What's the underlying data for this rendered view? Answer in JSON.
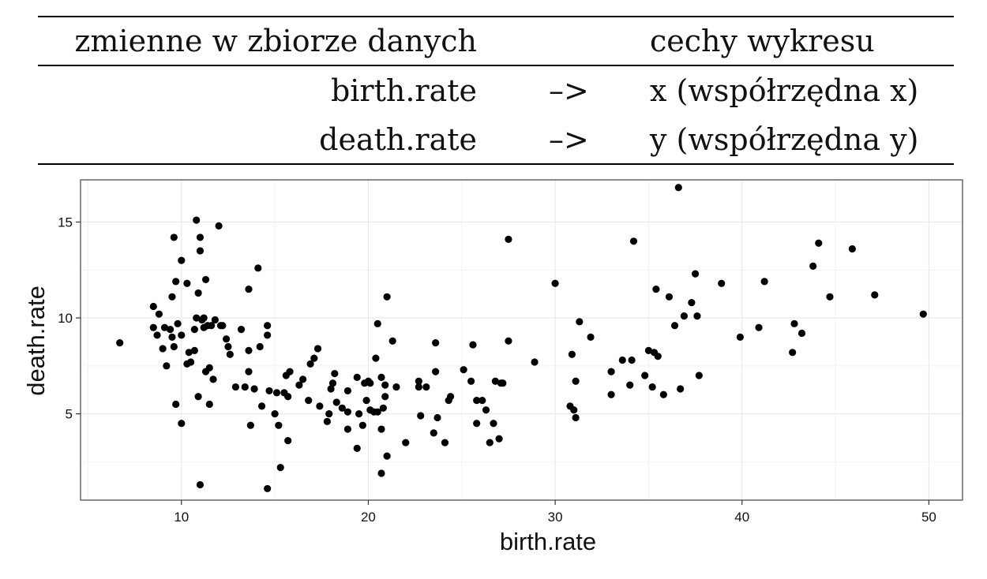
{
  "mapping_table": {
    "header": {
      "variables": "zmienne w zbiorze danych",
      "features": "cechy wykresu"
    },
    "rows": [
      {
        "variable": "birth.rate",
        "arrow": "–>",
        "feature": "x (współrzędna x)"
      },
      {
        "variable": "death.rate",
        "arrow": "–>",
        "feature": "y (współrzędna y)"
      }
    ]
  },
  "chart_data": {
    "type": "scatter",
    "xlabel": "birth.rate",
    "ylabel": "death.rate",
    "xlim": [
      4.6,
      51.8
    ],
    "ylim": [
      0.5,
      17.2
    ],
    "xticks": [
      10,
      20,
      30,
      40,
      50
    ],
    "yticks": [
      5,
      10,
      15
    ],
    "grid": true,
    "point_color": "#000000",
    "points": [
      [
        6.7,
        8.7
      ],
      [
        8.5,
        10.6
      ],
      [
        8.7,
        9.1
      ],
      [
        8.8,
        10.2
      ],
      [
        8.5,
        9.5
      ],
      [
        9.0,
        8.4
      ],
      [
        9.1,
        9.5
      ],
      [
        9.2,
        7.5
      ],
      [
        9.4,
        9.4
      ],
      [
        9.5,
        9.0
      ],
      [
        9.6,
        8.5
      ],
      [
        9.5,
        11.1
      ],
      [
        9.6,
        14.2
      ],
      [
        9.7,
        5.5
      ],
      [
        9.8,
        9.7
      ],
      [
        9.7,
        11.9
      ],
      [
        10.0,
        13.0
      ],
      [
        10.0,
        9.1
      ],
      [
        10.0,
        4.5
      ],
      [
        10.3,
        7.6
      ],
      [
        10.3,
        11.8
      ],
      [
        10.4,
        8.2
      ],
      [
        10.5,
        7.7
      ],
      [
        10.7,
        9.4
      ],
      [
        10.7,
        8.3
      ],
      [
        10.8,
        10.0
      ],
      [
        10.8,
        15.1
      ],
      [
        10.9,
        11.3
      ],
      [
        10.9,
        5.9
      ],
      [
        11.0,
        13.5
      ],
      [
        11.0,
        14.2
      ],
      [
        11.1,
        9.9
      ],
      [
        11.0,
        1.3
      ],
      [
        11.2,
        10.0
      ],
      [
        11.2,
        9.5
      ],
      [
        11.3,
        7.2
      ],
      [
        11.3,
        12.0
      ],
      [
        11.4,
        9.6
      ],
      [
        11.5,
        7.4
      ],
      [
        11.5,
        5.5
      ],
      [
        11.6,
        9.6
      ],
      [
        11.7,
        6.8
      ],
      [
        11.8,
        9.9
      ],
      [
        12.0,
        14.8
      ],
      [
        12.1,
        9.6
      ],
      [
        12.2,
        9.6
      ],
      [
        12.4,
        8.9
      ],
      [
        12.5,
        8.5
      ],
      [
        12.6,
        8.1
      ],
      [
        12.9,
        6.4
      ],
      [
        13.2,
        9.4
      ],
      [
        13.4,
        6.4
      ],
      [
        13.6,
        8.3
      ],
      [
        13.6,
        7.2
      ],
      [
        13.6,
        11.5
      ],
      [
        13.7,
        4.4
      ],
      [
        13.9,
        6.3
      ],
      [
        14.1,
        12.6
      ],
      [
        14.2,
        8.5
      ],
      [
        14.3,
        5.4
      ],
      [
        14.6,
        1.1
      ],
      [
        14.6,
        9.6
      ],
      [
        14.6,
        9.1
      ],
      [
        14.7,
        6.2
      ],
      [
        15.0,
        5.0
      ],
      [
        15.1,
        6.1
      ],
      [
        15.2,
        4.4
      ],
      [
        15.3,
        2.2
      ],
      [
        15.5,
        6.1
      ],
      [
        15.6,
        7.0
      ],
      [
        15.7,
        5.9
      ],
      [
        15.7,
        3.6
      ],
      [
        15.8,
        7.2
      ],
      [
        16.3,
        6.5
      ],
      [
        16.5,
        6.8
      ],
      [
        16.8,
        5.7
      ],
      [
        16.9,
        7.6
      ],
      [
        17.1,
        7.9
      ],
      [
        17.3,
        8.4
      ],
      [
        17.4,
        5.4
      ],
      [
        17.8,
        4.6
      ],
      [
        17.9,
        5.0
      ],
      [
        18.0,
        6.3
      ],
      [
        18.1,
        6.6
      ],
      [
        18.2,
        7.1
      ],
      [
        18.3,
        5.6
      ],
      [
        18.6,
        5.3
      ],
      [
        18.9,
        4.2
      ],
      [
        18.9,
        6.2
      ],
      [
        18.9,
        5.1
      ],
      [
        19.4,
        6.9
      ],
      [
        19.4,
        3.2
      ],
      [
        19.5,
        5.0
      ],
      [
        19.7,
        4.4
      ],
      [
        19.8,
        6.6
      ],
      [
        19.9,
        5.7
      ],
      [
        20.0,
        6.7
      ],
      [
        20.1,
        6.6
      ],
      [
        20.1,
        5.2
      ],
      [
        20.3,
        5.1
      ],
      [
        20.4,
        7.9
      ],
      [
        20.5,
        5.1
      ],
      [
        20.5,
        9.7
      ],
      [
        20.7,
        6.9
      ],
      [
        20.7,
        1.9
      ],
      [
        20.7,
        4.2
      ],
      [
        20.8,
        5.3
      ],
      [
        20.9,
        5.9
      ],
      [
        20.9,
        6.5
      ],
      [
        21.0,
        2.8
      ],
      [
        21.0,
        11.1
      ],
      [
        21.3,
        8.8
      ],
      [
        21.5,
        6.4
      ],
      [
        22.0,
        3.5
      ],
      [
        22.7,
        6.7
      ],
      [
        22.7,
        6.4
      ],
      [
        22.8,
        4.9
      ],
      [
        23.1,
        6.4
      ],
      [
        23.5,
        4.0
      ],
      [
        23.6,
        7.2
      ],
      [
        23.6,
        8.7
      ],
      [
        23.7,
        4.8
      ],
      [
        24.1,
        3.5
      ],
      [
        24.3,
        5.7
      ],
      [
        24.4,
        5.9
      ],
      [
        25.1,
        7.3
      ],
      [
        25.5,
        6.7
      ],
      [
        25.6,
        8.6
      ],
      [
        25.8,
        5.7
      ],
      [
        25.8,
        4.5
      ],
      [
        26.1,
        5.7
      ],
      [
        26.3,
        5.2
      ],
      [
        26.5,
        3.5
      ],
      [
        26.7,
        4.5
      ],
      [
        26.8,
        6.7
      ],
      [
        27.0,
        3.7
      ],
      [
        27.1,
        6.6
      ],
      [
        27.2,
        6.6
      ],
      [
        27.5,
        14.1
      ],
      [
        27.5,
        8.8
      ],
      [
        28.9,
        7.7
      ],
      [
        30.0,
        11.8
      ],
      [
        30.8,
        5.4
      ],
      [
        30.9,
        8.1
      ],
      [
        31.0,
        5.2
      ],
      [
        31.1,
        4.8
      ],
      [
        31.1,
        6.7
      ],
      [
        31.3,
        9.8
      ],
      [
        31.9,
        9.0
      ],
      [
        33.0,
        7.2
      ],
      [
        33.0,
        6.0
      ],
      [
        33.6,
        7.8
      ],
      [
        34.0,
        6.5
      ],
      [
        34.1,
        7.8
      ],
      [
        34.2,
        14.0
      ],
      [
        34.8,
        7.0
      ],
      [
        35.0,
        8.3
      ],
      [
        35.2,
        6.4
      ],
      [
        35.3,
        8.2
      ],
      [
        35.4,
        11.5
      ],
      [
        35.5,
        8.0
      ],
      [
        35.8,
        6.0
      ],
      [
        36.1,
        11.1
      ],
      [
        36.4,
        9.6
      ],
      [
        36.6,
        16.8
      ],
      [
        36.7,
        6.3
      ],
      [
        36.9,
        10.1
      ],
      [
        37.3,
        10.8
      ],
      [
        37.5,
        12.3
      ],
      [
        37.6,
        10.1
      ],
      [
        37.7,
        7.0
      ],
      [
        38.9,
        11.8
      ],
      [
        39.9,
        9.0
      ],
      [
        40.9,
        9.5
      ],
      [
        41.2,
        11.9
      ],
      [
        42.7,
        8.2
      ],
      [
        42.8,
        9.7
      ],
      [
        43.2,
        9.2
      ],
      [
        43.8,
        12.7
      ],
      [
        44.1,
        13.9
      ],
      [
        44.7,
        11.1
      ],
      [
        45.9,
        13.6
      ],
      [
        47.1,
        11.2
      ],
      [
        49.7,
        10.2
      ]
    ]
  }
}
